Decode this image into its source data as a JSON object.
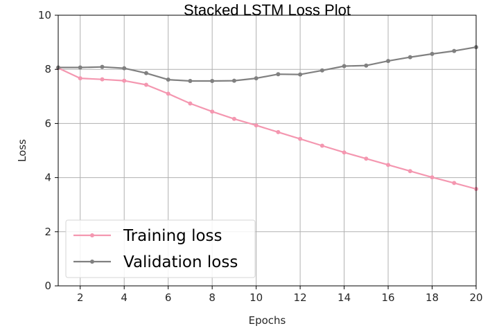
{
  "chart_data": {
    "type": "line",
    "title": "Stacked LSTM Loss Plot",
    "xlabel": "Epochs",
    "ylabel": "Loss",
    "xlim": [
      1,
      20
    ],
    "ylim": [
      0,
      10
    ],
    "xticks": [
      2,
      4,
      6,
      8,
      10,
      12,
      14,
      16,
      18,
      20
    ],
    "yticks": [
      0,
      2,
      4,
      6,
      8,
      10
    ],
    "grid": true,
    "legend_position": "bottom-left",
    "x": [
      1,
      2,
      3,
      4,
      5,
      6,
      7,
      8,
      9,
      10,
      11,
      12,
      13,
      14,
      15,
      16,
      17,
      18,
      19,
      20
    ],
    "series": [
      {
        "name": "Training loss",
        "color": "#f497b0",
        "values": [
          8.05,
          7.67,
          7.63,
          7.58,
          7.43,
          7.1,
          6.74,
          6.44,
          6.17,
          5.93,
          5.68,
          5.43,
          5.18,
          4.93,
          4.7,
          4.47,
          4.24,
          4.01,
          3.8,
          3.58
        ]
      },
      {
        "name": "Validation loss",
        "color": "#808080",
        "values": [
          8.07,
          8.07,
          8.09,
          8.04,
          7.86,
          7.62,
          7.57,
          7.57,
          7.58,
          7.67,
          7.82,
          7.81,
          7.96,
          8.12,
          8.14,
          8.31,
          8.45,
          8.57,
          8.68,
          8.82
        ]
      }
    ]
  }
}
